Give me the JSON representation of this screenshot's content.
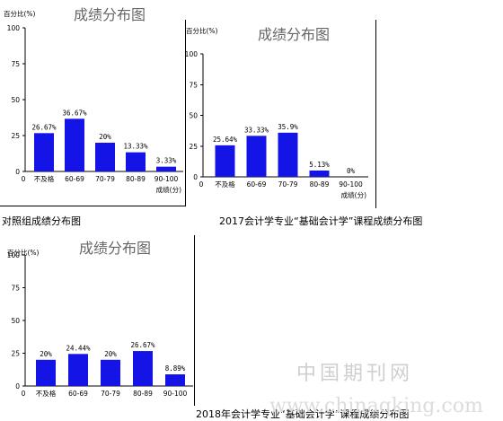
{
  "captions": {
    "c1": "对照组成绩分布图",
    "c2": "2017会计学专业“基础会计学”课程成绩分布图",
    "c3": "2018年会计学专业“基础会计学”课程成绩分布图"
  },
  "watermark": {
    "cn": "中国期刊网",
    "url": "www.chinaqking.com"
  },
  "colors": {
    "bar": "#1414e6",
    "axis": "#000000",
    "title": "#666666"
  },
  "chart_data": [
    {
      "type": "bar",
      "title": "成绩分布图",
      "ylabel": "百分比(%)",
      "xlabel": "成绩(分)",
      "ylim": [
        0,
        100
      ],
      "yticks": [
        "0",
        "25",
        "50",
        "75",
        "100"
      ],
      "categories": [
        "不及格",
        "60-69",
        "70-79",
        "80-89",
        "90-100"
      ],
      "values": [
        26.67,
        36.67,
        20,
        13.33,
        3.33
      ],
      "labels": [
        "26.67%",
        "36.67%",
        "20%",
        "13.33%",
        "3.33%"
      ]
    },
    {
      "type": "bar",
      "title": "成绩分布图",
      "ylabel": "百分比(%)",
      "xlabel": "成绩(分)",
      "ylim": [
        0,
        100
      ],
      "yticks": [
        "0",
        "25",
        "50",
        "75",
        "100"
      ],
      "categories": [
        "不及格",
        "60-69",
        "70-79",
        "80-89",
        "90-100"
      ],
      "values": [
        25.64,
        33.33,
        35.9,
        5.13,
        0
      ],
      "labels": [
        "25.64%",
        "33.33%",
        "35.9%",
        "5.13%",
        "0%"
      ]
    },
    {
      "type": "bar",
      "title": "成绩分布图",
      "ylabel": "百分比(%)",
      "xlabel": "",
      "ylim": [
        0,
        100
      ],
      "yticks": [
        "0",
        "25",
        "50",
        "75",
        "100"
      ],
      "categories": [
        "不及格",
        "60-69",
        "70-79",
        "80-89",
        "90-100"
      ],
      "values": [
        20,
        24.44,
        20,
        26.67,
        8.89
      ],
      "labels": [
        "20%",
        "24.44%",
        "20%",
        "26.67%",
        "8.89%"
      ]
    }
  ]
}
